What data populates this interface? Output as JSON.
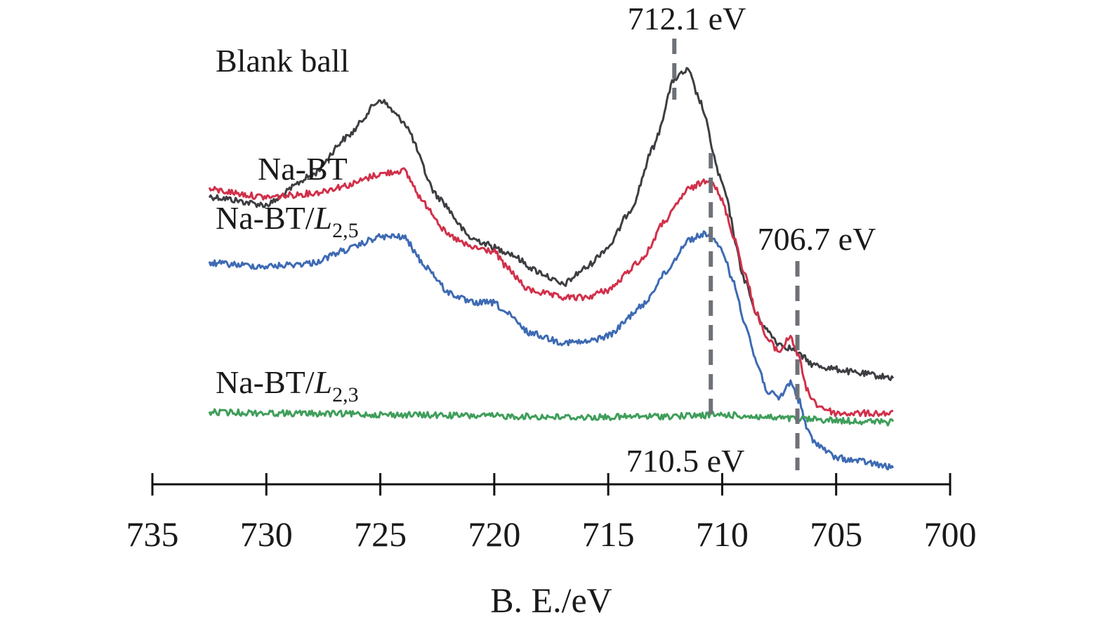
{
  "chart_data": {
    "type": "line",
    "xlabel": "B. E./eV",
    "ylabel": "",
    "xlim": [
      735,
      700
    ],
    "x_reversed": true,
    "xticks": [
      735,
      730,
      725,
      720,
      715,
      710,
      705,
      700
    ],
    "y_axis_shown": false,
    "grid": false,
    "legend": "none (series labeled directly on plot)",
    "x_range_of_data": [
      732.5,
      702.5
    ],
    "series": [
      {
        "name": "Blank ball",
        "label_main": "Blank ball",
        "label_sub": "",
        "color": "#3d3d42",
        "points": [
          [
            732.5,
            0.7
          ],
          [
            730.0,
            0.68
          ],
          [
            728.0,
            0.75
          ],
          [
            726.5,
            0.84
          ],
          [
            725.0,
            0.93
          ],
          [
            724.0,
            0.88
          ],
          [
            722.5,
            0.7
          ],
          [
            721.0,
            0.6
          ],
          [
            719.5,
            0.57
          ],
          [
            718.0,
            0.52
          ],
          [
            717.0,
            0.49
          ],
          [
            716.0,
            0.53
          ],
          [
            715.0,
            0.58
          ],
          [
            714.0,
            0.67
          ],
          [
            713.0,
            0.82
          ],
          [
            712.1,
            0.98
          ],
          [
            711.5,
            1.0
          ],
          [
            711.0,
            0.93
          ],
          [
            710.0,
            0.73
          ],
          [
            709.0,
            0.5
          ],
          [
            708.5,
            0.42
          ],
          [
            708.0,
            0.38
          ],
          [
            707.5,
            0.35
          ],
          [
            707.0,
            0.34
          ],
          [
            706.5,
            0.32
          ],
          [
            706.0,
            0.3
          ],
          [
            705.0,
            0.29
          ],
          [
            704.0,
            0.28
          ],
          [
            702.5,
            0.27
          ]
        ]
      },
      {
        "name": "Na-BT",
        "label_main": "Na-BT",
        "label_sub": "",
        "color": "#d1304a",
        "points": [
          [
            732.5,
            0.56
          ],
          [
            730.0,
            0.54
          ],
          [
            728.0,
            0.55
          ],
          [
            726.5,
            0.57
          ],
          [
            725.0,
            0.6
          ],
          [
            724.0,
            0.61
          ],
          [
            723.0,
            0.52
          ],
          [
            722.0,
            0.44
          ],
          [
            721.0,
            0.41
          ],
          [
            720.0,
            0.4
          ],
          [
            719.5,
            0.36
          ],
          [
            718.5,
            0.3
          ],
          [
            717.0,
            0.28
          ],
          [
            716.0,
            0.28
          ],
          [
            715.0,
            0.3
          ],
          [
            713.5,
            0.38
          ],
          [
            712.5,
            0.48
          ],
          [
            711.5,
            0.56
          ],
          [
            710.5,
            0.59
          ],
          [
            710.0,
            0.53
          ],
          [
            709.5,
            0.44
          ],
          [
            709.0,
            0.34
          ],
          [
            708.5,
            0.24
          ],
          [
            708.0,
            0.17
          ],
          [
            707.5,
            0.14
          ],
          [
            707.0,
            0.18
          ],
          [
            706.6,
            0.12
          ],
          [
            706.3,
            0.04
          ],
          [
            705.8,
            0.0
          ],
          [
            705.0,
            -0.02
          ],
          [
            704.0,
            -0.02
          ],
          [
            702.5,
            -0.02
          ]
        ]
      },
      {
        "name": "Na-BT/L2,5",
        "label_main": "Na-BT/",
        "label_sub": "L2,5",
        "color": "#3d6ab3",
        "points": [
          [
            732.5,
            0.33
          ],
          [
            730.0,
            0.32
          ],
          [
            728.0,
            0.33
          ],
          [
            726.5,
            0.37
          ],
          [
            725.0,
            0.41
          ],
          [
            724.0,
            0.41
          ],
          [
            723.0,
            0.32
          ],
          [
            722.0,
            0.24
          ],
          [
            721.0,
            0.21
          ],
          [
            720.0,
            0.21
          ],
          [
            719.5,
            0.18
          ],
          [
            718.5,
            0.12
          ],
          [
            717.0,
            0.09
          ],
          [
            716.0,
            0.09
          ],
          [
            715.0,
            0.11
          ],
          [
            713.5,
            0.2
          ],
          [
            712.5,
            0.3
          ],
          [
            711.5,
            0.4
          ],
          [
            710.7,
            0.42
          ],
          [
            710.0,
            0.37
          ],
          [
            709.5,
            0.27
          ],
          [
            709.0,
            0.15
          ],
          [
            708.5,
            0.03
          ],
          [
            708.0,
            -0.06
          ],
          [
            707.5,
            -0.08
          ],
          [
            707.0,
            -0.03
          ],
          [
            706.6,
            -0.09
          ],
          [
            706.3,
            -0.17
          ],
          [
            706.0,
            -0.21
          ],
          [
            705.0,
            -0.26
          ],
          [
            704.0,
            -0.27
          ],
          [
            702.5,
            -0.29
          ]
        ]
      },
      {
        "name": "Na-BT/L2,3",
        "label_main": "Na-BT/",
        "label_sub": "L2,3",
        "color": "#3f9e5a",
        "points": [
          [
            732.5,
            -0.03
          ],
          [
            728.0,
            -0.04
          ],
          [
            724.0,
            -0.05
          ],
          [
            720.0,
            -0.06
          ],
          [
            716.0,
            -0.07
          ],
          [
            712.0,
            -0.06
          ],
          [
            710.0,
            -0.05
          ],
          [
            707.0,
            -0.08
          ],
          [
            704.0,
            -0.1
          ],
          [
            702.5,
            -0.11
          ]
        ]
      }
    ],
    "annotations": [
      {
        "text": "712.1 eV",
        "x": 712.1
      },
      {
        "text": "710.5 eV",
        "x": 710.5
      },
      {
        "text": "706.7 eV",
        "x": 706.7
      }
    ]
  }
}
